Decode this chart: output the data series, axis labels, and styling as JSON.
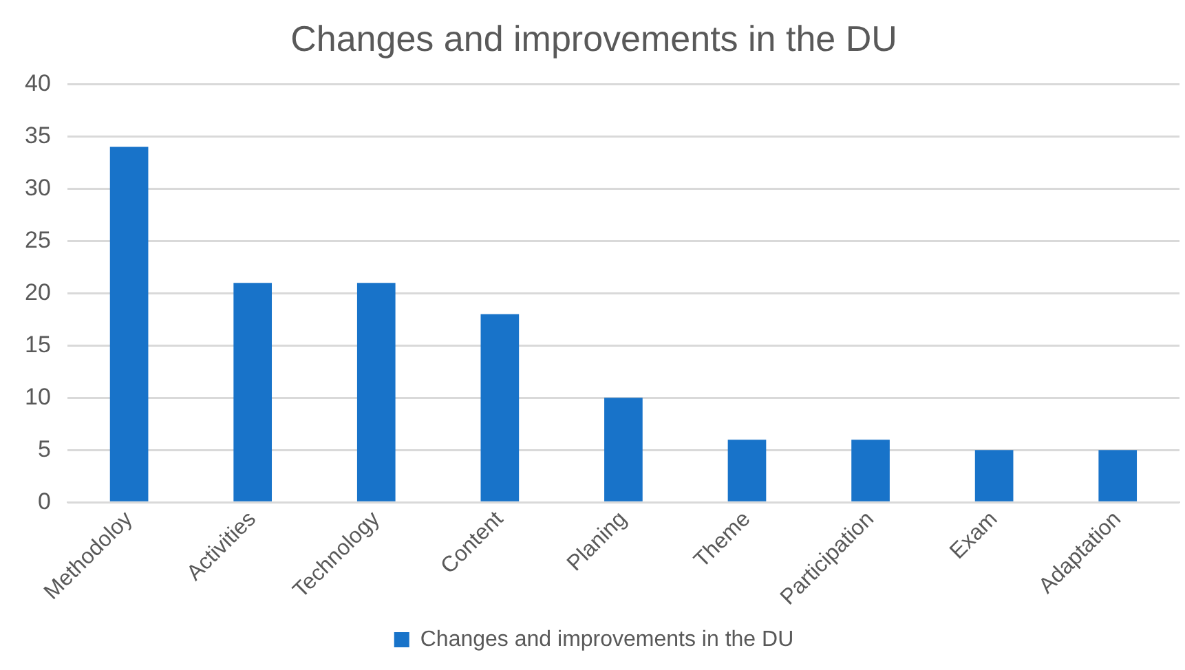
{
  "chart_data": {
    "type": "bar",
    "title": "Changes and improvements in the DU",
    "categories": [
      "Methodoloy",
      "Activities",
      "Technology",
      "Content",
      "Planing",
      "Theme",
      "Participation",
      "Exam",
      "Adaptation"
    ],
    "series": [
      {
        "name": "Changes and improvements in the DU",
        "color": "#1873c9",
        "values": [
          34,
          21,
          21,
          18,
          10,
          6,
          6,
          5,
          5
        ]
      }
    ],
    "ylim": [
      0,
      40
    ],
    "yticks": [
      0,
      5,
      10,
      15,
      20,
      25,
      30,
      35,
      40
    ],
    "grid": "y",
    "legend": "bottom"
  }
}
